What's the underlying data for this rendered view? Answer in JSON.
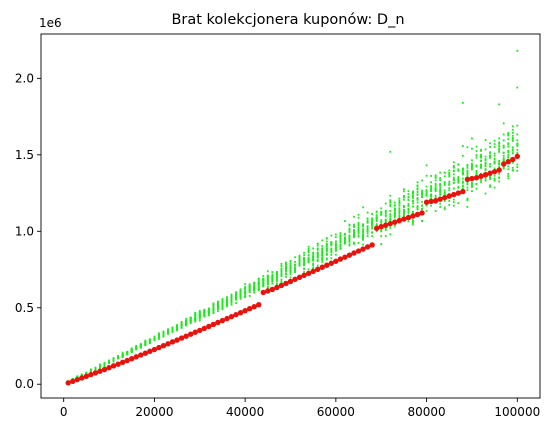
{
  "chart_data": {
    "type": "scatter",
    "title": "Brat kolekcjonera kuponów: D_n",
    "xlabel": "",
    "ylabel": "",
    "y_multiplier_label": "1e6",
    "xlim": [
      -5000,
      105000
    ],
    "ylim": [
      -0.09,
      2.29
    ],
    "x_ticks": [
      0,
      20000,
      40000,
      60000,
      80000,
      100000
    ],
    "x_tick_labels": [
      "0",
      "20000",
      "40000",
      "60000",
      "80000",
      "100000"
    ],
    "y_ticks": [
      0.0,
      0.5,
      1.0,
      1.5,
      2.0
    ],
    "y_tick_labels": [
      "0.0",
      "0.5",
      "1.0",
      "1.5",
      "2.0"
    ],
    "grid": false,
    "legend": "none",
    "series": [
      {
        "marker_color": "#1aeb1a",
        "marker_size": 2,
        "x_start": 1000,
        "x_step": 1000,
        "samples_per_x": 20,
        "description_values": "about 20 simulated samples per n; y approx 0.146*(n/10000)^1.03 million with spread widening with n",
        "outliers": [
          {
            "x": 100000,
            "y": 2.18
          },
          {
            "x": 100000,
            "y": 1.94
          },
          {
            "x": 88000,
            "y": 1.84
          },
          {
            "x": 96000,
            "y": 1.83
          },
          {
            "x": 72000,
            "y": 1.52
          }
        ]
      },
      {
        "marker_color": "#e8130d",
        "marker_size": 5,
        "values": [
          [
            1000,
            0.009
          ],
          [
            2000,
            0.019
          ],
          [
            3000,
            0.03
          ],
          [
            4000,
            0.041
          ],
          [
            5000,
            0.052
          ],
          [
            6000,
            0.063
          ],
          [
            7000,
            0.074
          ],
          [
            8000,
            0.085
          ],
          [
            9000,
            0.096
          ],
          [
            10000,
            0.108
          ],
          [
            11000,
            0.12
          ],
          [
            12000,
            0.131
          ],
          [
            13000,
            0.143
          ],
          [
            14000,
            0.155
          ],
          [
            15000,
            0.167
          ],
          [
            16000,
            0.179
          ],
          [
            17000,
            0.191
          ],
          [
            18000,
            0.203
          ],
          [
            19000,
            0.215
          ],
          [
            20000,
            0.227
          ],
          [
            21000,
            0.24
          ],
          [
            22000,
            0.252
          ],
          [
            23000,
            0.264
          ],
          [
            24000,
            0.277
          ],
          [
            25000,
            0.289
          ],
          [
            26000,
            0.302
          ],
          [
            27000,
            0.314
          ],
          [
            28000,
            0.327
          ],
          [
            29000,
            0.34
          ],
          [
            30000,
            0.352
          ],
          [
            31000,
            0.365
          ],
          [
            32000,
            0.378
          ],
          [
            33000,
            0.391
          ],
          [
            34000,
            0.404
          ],
          [
            35000,
            0.416
          ],
          [
            36000,
            0.429
          ],
          [
            37000,
            0.442
          ],
          [
            38000,
            0.455
          ],
          [
            39000,
            0.468
          ],
          [
            40000,
            0.481
          ],
          [
            41000,
            0.494
          ],
          [
            42000,
            0.507
          ],
          [
            43000,
            0.52
          ],
          [
            44000,
            0.6
          ],
          [
            45000,
            0.61
          ],
          [
            46000,
            0.62
          ],
          [
            47000,
            0.633
          ],
          [
            48000,
            0.646
          ],
          [
            49000,
            0.659
          ],
          [
            50000,
            0.672
          ],
          [
            51000,
            0.686
          ],
          [
            52000,
            0.699
          ],
          [
            53000,
            0.712
          ],
          [
            54000,
            0.725
          ],
          [
            55000,
            0.738
          ],
          [
            56000,
            0.751
          ],
          [
            57000,
            0.765
          ],
          [
            58000,
            0.778
          ],
          [
            59000,
            0.791
          ],
          [
            60000,
            0.804
          ],
          [
            61000,
            0.818
          ],
          [
            62000,
            0.831
          ],
          [
            63000,
            0.844
          ],
          [
            64000,
            0.858
          ],
          [
            65000,
            0.871
          ],
          [
            66000,
            0.884
          ],
          [
            67000,
            0.898
          ],
          [
            68000,
            0.911
          ],
          [
            69000,
            1.02
          ],
          [
            70000,
            1.03
          ],
          [
            71000,
            1.04
          ],
          [
            72000,
            1.05
          ],
          [
            73000,
            1.06
          ],
          [
            74000,
            1.07
          ],
          [
            75000,
            1.08
          ],
          [
            76000,
            1.09
          ],
          [
            77000,
            1.1
          ],
          [
            78000,
            1.11
          ],
          [
            79000,
            1.12
          ],
          [
            80000,
            1.19
          ],
          [
            81000,
            1.195
          ],
          [
            82000,
            1.2
          ],
          [
            83000,
            1.21
          ],
          [
            84000,
            1.22
          ],
          [
            85000,
            1.23
          ],
          [
            86000,
            1.24
          ],
          [
            87000,
            1.25
          ],
          [
            88000,
            1.26
          ],
          [
            89000,
            1.34
          ],
          [
            90000,
            1.345
          ],
          [
            91000,
            1.35
          ],
          [
            92000,
            1.36
          ],
          [
            93000,
            1.37
          ],
          [
            94000,
            1.38
          ],
          [
            95000,
            1.39
          ],
          [
            96000,
            1.4
          ],
          [
            97000,
            1.44
          ],
          [
            98000,
            1.455
          ],
          [
            99000,
            1.47
          ],
          [
            100000,
            1.49
          ]
        ]
      }
    ]
  }
}
